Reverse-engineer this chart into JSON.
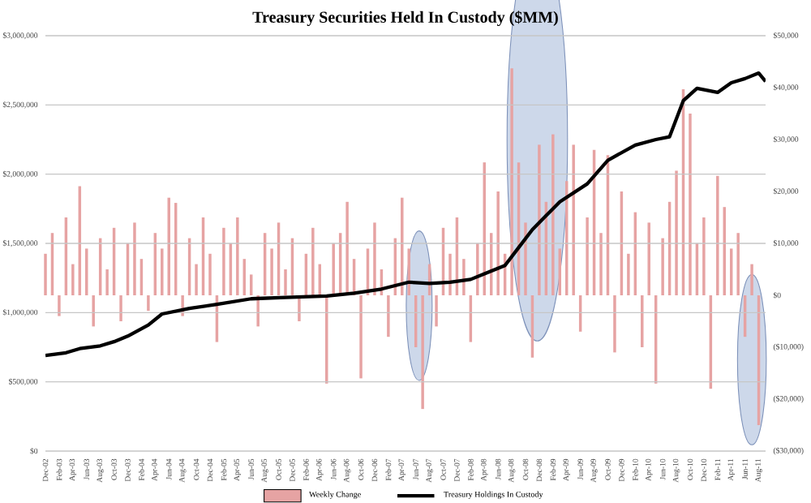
{
  "chart_data": {
    "type": "line",
    "title": "Treasury Securities Held In Custody ($MM)",
    "xlim": [
      "2002-12",
      "2011-09"
    ],
    "xticks": [
      {
        "value": "2002-12",
        "label": "Dec-02"
      },
      {
        "value": "2003-02",
        "label": "Feb-03"
      },
      {
        "value": "2003-04",
        "label": "Apr-03"
      },
      {
        "value": "2003-06",
        "label": "Jun-03"
      },
      {
        "value": "2003-08",
        "label": "Aug-03"
      },
      {
        "value": "2003-10",
        "label": "Oct-03"
      },
      {
        "value": "2003-12",
        "label": "Dec-03"
      },
      {
        "value": "2004-02",
        "label": "Feb-04"
      },
      {
        "value": "2004-04",
        "label": "Apr-04"
      },
      {
        "value": "2004-06",
        "label": "Jun-04"
      },
      {
        "value": "2004-08",
        "label": "Aug-04"
      },
      {
        "value": "2004-10",
        "label": "Oct-04"
      },
      {
        "value": "2004-12",
        "label": "Dec-04"
      },
      {
        "value": "2005-02",
        "label": "Feb-05"
      },
      {
        "value": "2005-04",
        "label": "Apr-05"
      },
      {
        "value": "2005-06",
        "label": "Jun-05"
      },
      {
        "value": "2005-08",
        "label": "Aug-05"
      },
      {
        "value": "2005-10",
        "label": "Oct-05"
      },
      {
        "value": "2005-12",
        "label": "Dec-05"
      },
      {
        "value": "2006-02",
        "label": "Feb-06"
      },
      {
        "value": "2006-04",
        "label": "Apr-06"
      },
      {
        "value": "2006-06",
        "label": "Jun-06"
      },
      {
        "value": "2006-08",
        "label": "Aug-06"
      },
      {
        "value": "2006-10",
        "label": "Oct-06"
      },
      {
        "value": "2006-12",
        "label": "Dec-06"
      },
      {
        "value": "2007-02",
        "label": "Feb-07"
      },
      {
        "value": "2007-04",
        "label": "Apr-07"
      },
      {
        "value": "2007-06",
        "label": "Jun-07"
      },
      {
        "value": "2007-08",
        "label": "Aug-07"
      },
      {
        "value": "2007-10",
        "label": "Oct-07"
      },
      {
        "value": "2007-12",
        "label": "Dec-07"
      },
      {
        "value": "2008-02",
        "label": "Feb-08"
      },
      {
        "value": "2008-04",
        "label": "Apr-08"
      },
      {
        "value": "2008-06",
        "label": "Jun-08"
      },
      {
        "value": "2008-08",
        "label": "Aug-08"
      },
      {
        "value": "2008-10",
        "label": "Oct-08"
      },
      {
        "value": "2008-12",
        "label": "Dec-08"
      },
      {
        "value": "2009-02",
        "label": "Feb-09"
      },
      {
        "value": "2009-04",
        "label": "Apr-09"
      },
      {
        "value": "2009-06",
        "label": "Jun-09"
      },
      {
        "value": "2009-08",
        "label": "Aug-09"
      },
      {
        "value": "2009-10",
        "label": "Oct-09"
      },
      {
        "value": "2009-12",
        "label": "Dec-09"
      },
      {
        "value": "2010-02",
        "label": "Feb-10"
      },
      {
        "value": "2010-04",
        "label": "Apr-10"
      },
      {
        "value": "2010-06",
        "label": "Jun-10"
      },
      {
        "value": "2010-08",
        "label": "Aug-10"
      },
      {
        "value": "2010-10",
        "label": "Oct-10"
      },
      {
        "value": "2010-12",
        "label": "Dec-10"
      },
      {
        "value": "2011-02",
        "label": "Feb-11"
      },
      {
        "value": "2011-04",
        "label": "Apr-11"
      },
      {
        "value": "2011-06",
        "label": "Jun-11"
      },
      {
        "value": "2011-08",
        "label": "Aug-11"
      }
    ],
    "ylim": [
      0,
      3000000
    ],
    "yticks": [
      {
        "value": 0,
        "label": "$0"
      },
      {
        "value": 500000,
        "label": "$500,000"
      },
      {
        "value": 1000000,
        "label": "$1,000,000"
      },
      {
        "value": 1500000,
        "label": "$1,500,000"
      },
      {
        "value": 2000000,
        "label": "$2,000,000"
      },
      {
        "value": 2500000,
        "label": "$2,500,000"
      },
      {
        "value": 3000000,
        "label": "$3,000,000"
      }
    ],
    "y2lim": [
      -30000,
      50000
    ],
    "y2ticks": [
      {
        "value": -30000,
        "label": "($30,000)"
      },
      {
        "value": -20000,
        "label": "($20,000)"
      },
      {
        "value": -10000,
        "label": "($10,000)"
      },
      {
        "value": 0,
        "label": "$0"
      },
      {
        "value": 10000,
        "label": "$10,000"
      },
      {
        "value": 20000,
        "label": "$20,000"
      },
      {
        "value": 30000,
        "label": "$30,000"
      },
      {
        "value": 40000,
        "label": "$40,000"
      },
      {
        "value": 50000,
        "label": "$50,000"
      }
    ],
    "grid": "y",
    "legend": "bottom",
    "series": [
      {
        "name": "Weekly Change",
        "type": "bar",
        "axis": "y2",
        "color": "#e6a3a3",
        "x": [
          "2002-12",
          "2003-01",
          "2003-02",
          "2003-03",
          "2003-04",
          "2003-05",
          "2003-06",
          "2003-07",
          "2003-08",
          "2003-09",
          "2003-10",
          "2003-11",
          "2003-12",
          "2004-01",
          "2004-02",
          "2004-03",
          "2004-04",
          "2004-05",
          "2004-06",
          "2004-07",
          "2004-08",
          "2004-09",
          "2004-10",
          "2004-11",
          "2004-12",
          "2005-01",
          "2005-02",
          "2005-03",
          "2005-04",
          "2005-05",
          "2005-06",
          "2005-07",
          "2005-08",
          "2005-09",
          "2005-10",
          "2005-11",
          "2005-12",
          "2006-01",
          "2006-02",
          "2006-03",
          "2006-04",
          "2006-05",
          "2006-06",
          "2006-07",
          "2006-08",
          "2006-09",
          "2006-10",
          "2006-11",
          "2006-12",
          "2007-01",
          "2007-02",
          "2007-03",
          "2007-04",
          "2007-05",
          "2007-06",
          "2007-07",
          "2007-08",
          "2007-09",
          "2007-10",
          "2007-11",
          "2007-12",
          "2008-01",
          "2008-02",
          "2008-03",
          "2008-04",
          "2008-05",
          "2008-06",
          "2008-07",
          "2008-08",
          "2008-09",
          "2008-10",
          "2008-11",
          "2008-12",
          "2009-01",
          "2009-02",
          "2009-03",
          "2009-04",
          "2009-05",
          "2009-06",
          "2009-07",
          "2009-08",
          "2009-09",
          "2009-10",
          "2009-11",
          "2009-12",
          "2010-01",
          "2010-02",
          "2010-03",
          "2010-04",
          "2010-05",
          "2010-06",
          "2010-07",
          "2010-08",
          "2010-09",
          "2010-10",
          "2010-11",
          "2010-12",
          "2011-01",
          "2011-02",
          "2011-03",
          "2011-04",
          "2011-05",
          "2011-06",
          "2011-07",
          "2011-08"
        ],
        "values": [
          8000,
          12000,
          -4000,
          15000,
          6000,
          21000,
          9000,
          -6000,
          11000,
          5000,
          13000,
          -5000,
          10000,
          14000,
          7000,
          -3000,
          12000,
          9000,
          18800,
          17800,
          -4000,
          11000,
          6000,
          15000,
          8000,
          -9000,
          13000,
          10000,
          15000,
          7000,
          4000,
          -6000,
          12000,
          9000,
          14000,
          5000,
          11000,
          -5000,
          8000,
          13000,
          6000,
          -17000,
          10000,
          12000,
          18000,
          7000,
          -16000,
          9000,
          14000,
          5000,
          -8000,
          11000,
          18800,
          9000,
          -10000,
          -21900,
          6000,
          -6000,
          13000,
          8000,
          15000,
          7000,
          -9000,
          10000,
          25600,
          12000,
          20000,
          8000,
          43700,
          25600,
          14000,
          -12000,
          29000,
          18000,
          31000,
          9000,
          22000,
          29000,
          -7000,
          15000,
          28000,
          12000,
          27000,
          -11000,
          20000,
          8000,
          16000,
          -10000,
          14000,
          -17000,
          11000,
          18000,
          24000,
          39700,
          35000,
          10000,
          15000,
          -18000,
          23000,
          17000,
          9000,
          12000,
          -8000,
          6000,
          -25000
        ]
      },
      {
        "name": "Treasury Holdings In Custody",
        "axis": "y",
        "color": "#000000",
        "x": [
          "2002-12",
          "2003-03",
          "2003-05",
          "2003-08",
          "2003-10",
          "2003-12",
          "2004-03",
          "2004-05",
          "2004-09",
          "2005-01",
          "2005-06",
          "2005-11",
          "2006-05",
          "2006-09",
          "2007-01",
          "2007-05",
          "2007-08",
          "2007-11",
          "2008-02",
          "2008-04",
          "2008-07",
          "2008-09",
          "2008-11",
          "2009-01",
          "2009-03",
          "2009-07",
          "2009-10",
          "2010-02",
          "2010-05",
          "2010-07",
          "2010-09",
          "2010-11",
          "2011-02",
          "2011-04",
          "2011-06",
          "2011-08",
          "2011-09"
        ],
        "values": [
          690000,
          710000,
          740000,
          760000,
          790000,
          830000,
          910000,
          990000,
          1030000,
          1060000,
          1100000,
          1110000,
          1120000,
          1140000,
          1170000,
          1220000,
          1210000,
          1220000,
          1240000,
          1280000,
          1340000,
          1470000,
          1600000,
          1700000,
          1800000,
          1930000,
          2100000,
          2210000,
          2250000,
          2270000,
          2530000,
          2620000,
          2590000,
          2660000,
          2690000,
          2730000,
          2670000
        ]
      }
    ]
  }
}
